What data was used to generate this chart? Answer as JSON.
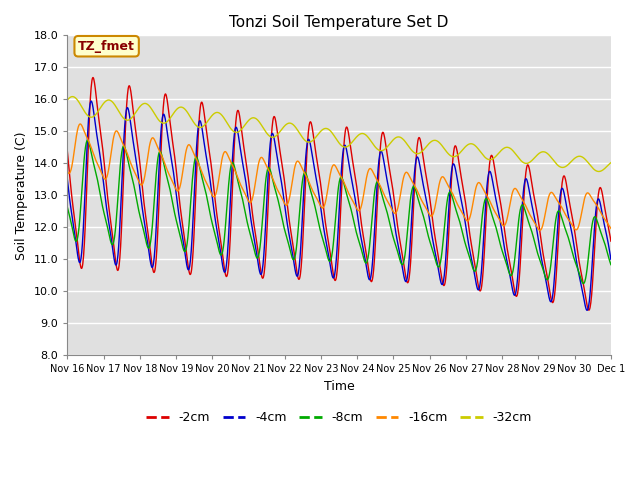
{
  "title": "Tonzi Soil Temperature Set D",
  "xlabel": "Time",
  "ylabel": "Soil Temperature (C)",
  "ylim": [
    8.0,
    18.0
  ],
  "yticks": [
    8.0,
    9.0,
    10.0,
    11.0,
    12.0,
    13.0,
    14.0,
    15.0,
    16.0,
    17.0,
    18.0
  ],
  "bg_color": "#e0e0e0",
  "fig_color": "#ffffff",
  "grid_color": "#ffffff",
  "series": [
    {
      "label": "-2cm",
      "color": "#dd0000"
    },
    {
      "label": "-4cm",
      "color": "#0000cc"
    },
    {
      "label": "-8cm",
      "color": "#00aa00"
    },
    {
      "label": "-16cm",
      "color": "#ff8800"
    },
    {
      "label": "-32cm",
      "color": "#cccc00"
    }
  ],
  "annotation_text": "TZ_fmet",
  "annotation_bg": "#ffffcc",
  "annotation_border": "#cc8800",
  "xtick_labels": [
    "Nov 16",
    "Nov 17",
    "Nov 18",
    "Nov 19",
    "Nov 20",
    "Nov 21",
    "Nov 22",
    "Nov 23",
    "Nov 24",
    "Nov 25",
    "Nov 26",
    "Nov 27",
    "Nov 28",
    "Nov 29",
    "Nov 30",
    "Dec 1"
  ],
  "n_points": 1440
}
